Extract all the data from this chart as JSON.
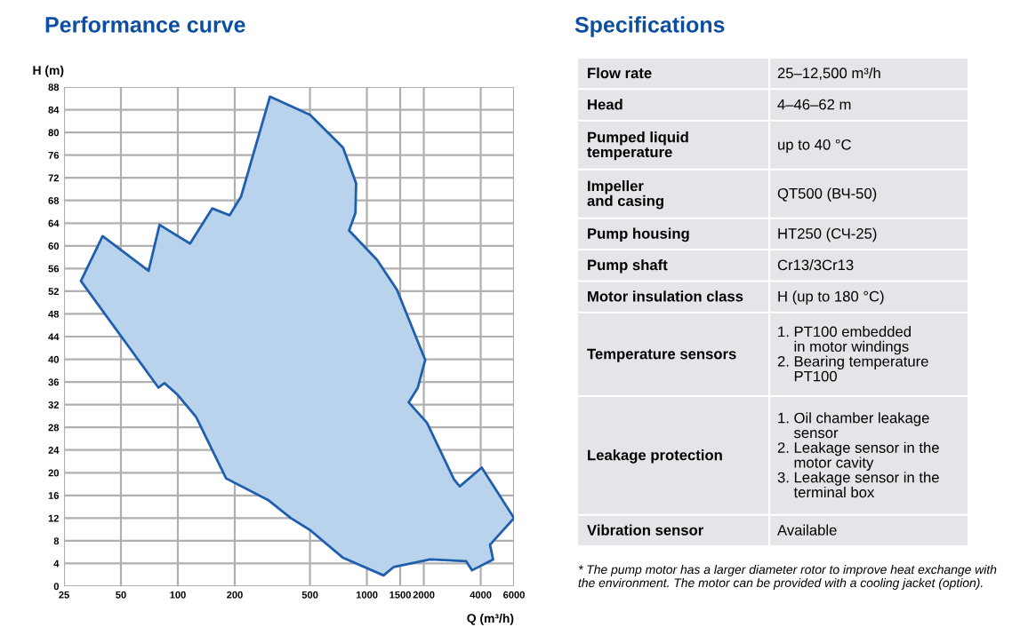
{
  "chart_data": [
    {
      "type": "area",
      "title": "Performance curve",
      "xlabel": "Q (m³/h)",
      "ylabel": "H (m)",
      "log": "x",
      "series": [
        {
          "color": "#1f5fae",
          "x": [
            30.7,
            40,
            70,
            80,
            116,
            152,
            188,
            216,
            307,
            500,
            748,
            877,
            870,
            805,
            1133,
            1440,
            2035,
            1860,
            1665,
            2080,
            2890,
            3100,
            4050,
            6000,
            4480,
            4650,
            3600,
            3350,
            2160,
            1390,
            1225,
            748,
            500,
            396,
            300,
            180,
            125,
            100,
            85,
            79
          ],
          "values": [
            53.8,
            61.7,
            55.6,
            63.7,
            60.4,
            66.6,
            65.4,
            68.7,
            86.3,
            83.1,
            77.3,
            71,
            65.8,
            62.7,
            57.5,
            52.3,
            39.9,
            35,
            32.4,
            28.8,
            18.8,
            17.6,
            20.9,
            12,
            7.3,
            4.7,
            2.8,
            4.4,
            4.7,
            3.4,
            1.9,
            5,
            9.9,
            12,
            15.2,
            19,
            29.8,
            33.7,
            35.8,
            35
          ]
        }
      ],
      "xlim": [
        25,
        6000
      ],
      "xticks": [
        25,
        50,
        100,
        200,
        500,
        1000,
        1500,
        2000,
        4000,
        6000
      ],
      "ylim": [
        0,
        88
      ],
      "yticks": [
        0,
        4,
        8,
        12,
        16,
        20,
        24,
        28,
        32,
        36,
        40,
        44,
        48,
        52,
        56,
        60,
        64,
        68,
        72,
        76,
        80,
        84,
        88
      ],
      "grid": true
    },
    {
      "type": "other",
      "title": "Specifications",
      "categories": [
        "Flow rate",
        "Head",
        "Pumped liquid\ntemperature",
        "Impeller\nand casing",
        "Pump housing",
        "Pump shaft",
        "Motor insulation class",
        "Temperature sensors",
        "Leakage protection",
        "Vibration sensor"
      ],
      "value_labels": [
        "25–12,500 m³/h",
        "4–46–62 m",
        "up to 40 °C",
        "QT500 (ВЧ-50)",
        "HT250 (СЧ-25)",
        "Cr13/3Cr13",
        "H (up to 180 °C)",
        "1. PT100 embedded\n    in motor windings\n2. Bearing temperature\n    PT100",
        "1. Oil chamber leakage\n    sensor\n2. Leakage sensor in the\n    motor cavity\n3. Leakage sensor in the\n    terminal box",
        "Available"
      ],
      "annotations": [
        "* The pump motor has a larger diameter rotor to improve heat exchange with the environment. The motor can be provided with a cooling jacket (option)."
      ]
    }
  ]
}
